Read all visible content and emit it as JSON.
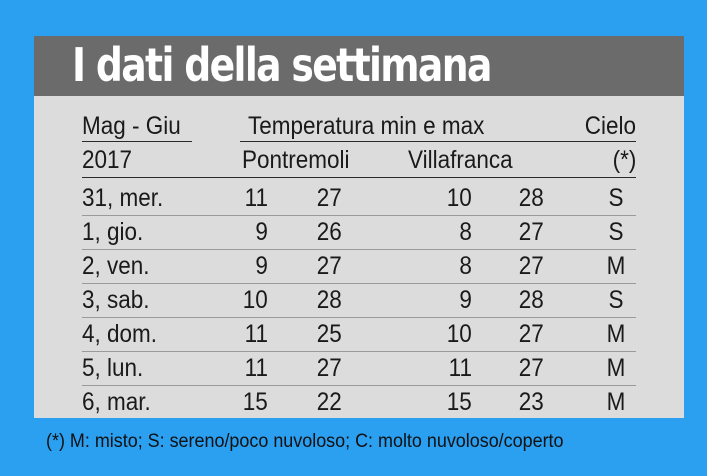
{
  "title": "I dati della settimana",
  "header": {
    "col_period": "Mag - Giu",
    "col_temp": "Temperatura min e max",
    "col_sky": "Cielo",
    "year": "2017",
    "city1": "Pontremoli",
    "city2": "Villafranca",
    "sky_note": "(*)"
  },
  "rows": [
    {
      "day": "31, mer.",
      "p_min": "11",
      "p_max": "27",
      "v_min": "10",
      "v_max": "28",
      "sky": "S"
    },
    {
      "day": "1, gio.",
      "p_min": "9",
      "p_max": "26",
      "v_min": "8",
      "v_max": "27",
      "sky": "S"
    },
    {
      "day": "2, ven.",
      "p_min": "9",
      "p_max": "27",
      "v_min": "8",
      "v_max": "27",
      "sky": "M"
    },
    {
      "day": "3, sab.",
      "p_min": "10",
      "p_max": "28",
      "v_min": "9",
      "v_max": "28",
      "sky": "S"
    },
    {
      "day": "4, dom.",
      "p_min": "11",
      "p_max": "25",
      "v_min": "10",
      "v_max": "27",
      "sky": "M"
    },
    {
      "day": "5, lun.",
      "p_min": "11",
      "p_max": "27",
      "v_min": "11",
      "v_max": "27",
      "sky": "M"
    },
    {
      "day": "6, mar.",
      "p_min": "15",
      "p_max": "22",
      "v_min": "15",
      "v_max": "23",
      "sky": "M"
    }
  ],
  "footer": "(*) M: misto; S: sereno/poco nuvoloso; C: molto nuvoloso/coperto",
  "colors": {
    "background": "#2b9ff0",
    "card": "#dcdcdc",
    "title_bar": "#6b6b6b",
    "title_text": "#ffffff"
  }
}
